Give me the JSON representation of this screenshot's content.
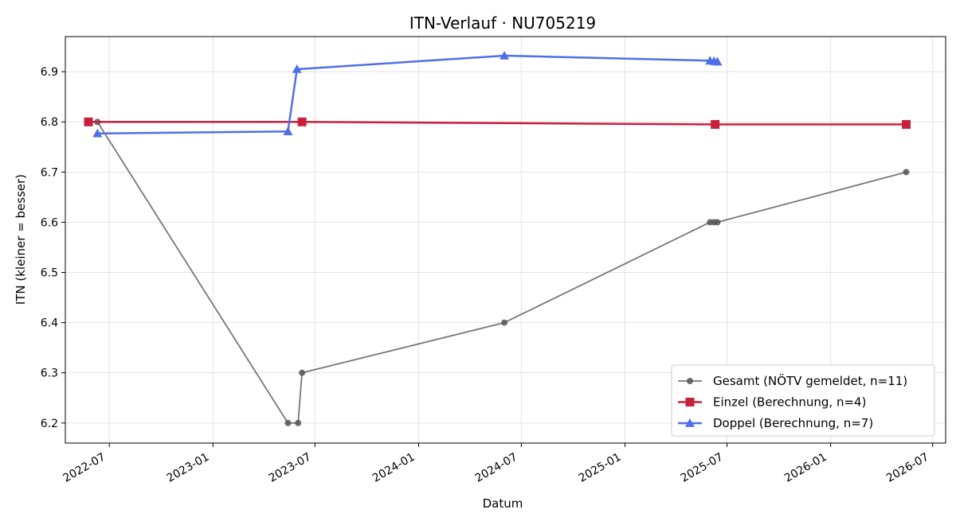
{
  "chart_data": {
    "type": "line",
    "title": "ITN-Verlauf · NU705219",
    "xlabel": "Datum",
    "ylabel": "ITN  (kleiner = besser)",
    "x_is_date": true,
    "xlim": [
      "2022-04-14",
      "2026-07-24"
    ],
    "ylim": [
      6.16,
      6.97
    ],
    "x_ticks": [
      "2022-07-01",
      "2023-01-01",
      "2023-07-01",
      "2024-01-01",
      "2024-07-01",
      "2025-01-01",
      "2025-07-01",
      "2026-01-01",
      "2026-07-01"
    ],
    "x_tick_labels": [
      "2022-07",
      "2023-01",
      "2023-07",
      "2024-01",
      "2024-07",
      "2025-01",
      "2025-07",
      "2026-01",
      "2026-07"
    ],
    "y_ticks": [
      6.2,
      6.3,
      6.4,
      6.5,
      6.6,
      6.7,
      6.8,
      6.9
    ],
    "y_tick_labels": [
      "6.2",
      "6.3",
      "6.4",
      "6.5",
      "6.6",
      "6.7",
      "6.8",
      "6.9"
    ],
    "grid": true,
    "legend_position": "lower-right",
    "series": [
      {
        "name": "Gesamt (NÖTV gemeldet, n=11)",
        "color": "#555555",
        "marker": "circle",
        "points": [
          [
            "2022-06-10",
            6.8
          ],
          [
            "2023-05-14",
            6.2
          ],
          [
            "2023-06-01",
            6.2
          ],
          [
            "2023-06-08",
            6.3
          ],
          [
            "2024-06-01",
            6.4
          ],
          [
            "2025-06-01",
            6.6
          ],
          [
            "2025-06-08",
            6.6
          ],
          [
            "2025-06-14",
            6.6
          ],
          [
            "2026-05-15",
            6.7
          ]
        ]
      },
      {
        "name": "Einzel (Berechnung, n=4)",
        "color": "#c8203a",
        "marker": "square",
        "points": [
          [
            "2022-05-25",
            6.8
          ],
          [
            "2023-06-08",
            6.8
          ],
          [
            "2025-06-10",
            6.795
          ],
          [
            "2026-05-15",
            6.795
          ]
        ]
      },
      {
        "name": "Doppel (Berechnung, n=7)",
        "color": "#4f6fe8",
        "marker": "triangle",
        "points": [
          [
            "2022-06-10",
            6.777
          ],
          [
            "2023-05-14",
            6.781
          ],
          [
            "2023-05-30",
            6.905
          ],
          [
            "2024-06-01",
            6.932
          ],
          [
            "2025-06-01",
            6.922
          ],
          [
            "2025-06-08",
            6.921
          ],
          [
            "2025-06-14",
            6.92
          ]
        ]
      }
    ]
  }
}
